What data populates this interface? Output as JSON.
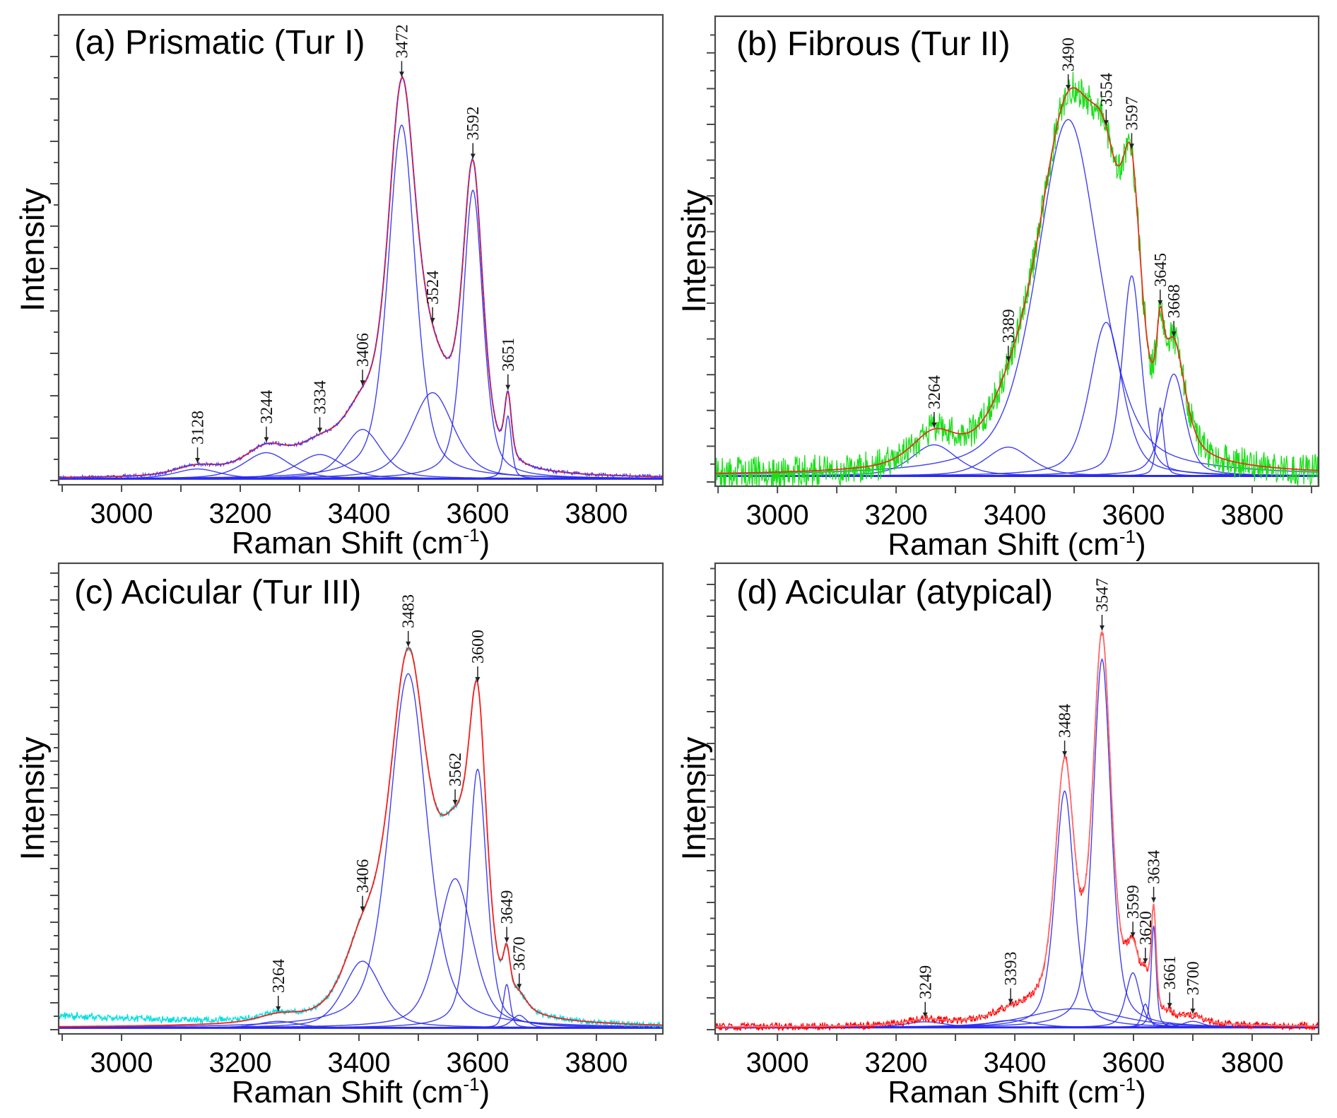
{
  "figure": {
    "panel_count": 4,
    "colors": {
      "component": "#2a2af0",
      "fit": "#ff1a1a",
      "frame": "#4a4a4a",
      "arrow": "#222222"
    }
  },
  "chart_data": [
    {
      "panel": "a",
      "type": "line",
      "title": "(a) Prismatic (Tur I)",
      "xlabel": {
        "text": "Raman Shift (cm",
        "superscript": "-1",
        "suffix": ")"
      },
      "ylabel": "Intensity",
      "xlim": [
        2894,
        3912
      ],
      "ylim": [
        -1,
        100
      ],
      "xticks": [
        3000,
        3200,
        3400,
        3600,
        3800
      ],
      "xticks_minor": [
        2900,
        3100,
        3300,
        3500,
        3700,
        3900
      ],
      "grid": false,
      "eta": 0.5,
      "baseline": [
        0.3,
        0.3
      ],
      "raw_noise": 0.4,
      "raw_color": "#3b3bff",
      "fit_color": "#ff1a1a",
      "series": [
        "measured spectrum",
        "fitted envelope",
        "fitted components"
      ],
      "components": [
        {
          "center": 3128,
          "height": 2.1,
          "fwhm": 90
        },
        {
          "center": 3244,
          "height": 5.6,
          "fwhm": 90
        },
        {
          "center": 3334,
          "height": 5.2,
          "fwhm": 90
        },
        {
          "center": 3406,
          "height": 10.6,
          "fwhm": 75
        },
        {
          "center": 3472,
          "height": 76,
          "fwhm": 55
        },
        {
          "center": 3524,
          "height": 18.5,
          "fwhm": 85
        },
        {
          "center": 3592,
          "height": 62,
          "fwhm": 40
        },
        {
          "center": 3651,
          "height": 13.5,
          "fwhm": 14
        }
      ],
      "peak_labels": [
        3128,
        3244,
        3334,
        3406,
        3472,
        3524,
        3592,
        3651
      ]
    },
    {
      "panel": "b",
      "type": "line",
      "title": "(b) Fibrous (Tur II)",
      "xlabel": {
        "text": "Raman Shift (cm",
        "superscript": "-1",
        "suffix": ")"
      },
      "ylabel": "Intensity",
      "xlim": [
        2895,
        3912
      ],
      "ylim": [
        -1,
        100
      ],
      "xticks": [
        3000,
        3200,
        3400,
        3600,
        3800
      ],
      "xticks_minor": [
        2900,
        3100,
        3300,
        3500,
        3700,
        3900
      ],
      "grid": false,
      "eta": 0.5,
      "baseline": [
        1.2,
        1.2
      ],
      "raw_noise": 3.5,
      "raw_color": "#19e019",
      "fit_color": "#e8321e",
      "series": [
        "measured spectrum",
        "fitted envelope",
        "fitted components"
      ],
      "components": [
        {
          "center": 3264,
          "height": 6.7,
          "fwhm": 90
        },
        {
          "center": 3389,
          "height": 6.2,
          "fwhm": 90
        },
        {
          "center": 3490,
          "height": 76.6,
          "fwhm": 125
        },
        {
          "center": 3554,
          "height": 33,
          "fwhm": 65
        },
        {
          "center": 3597,
          "height": 43,
          "fwhm": 38
        },
        {
          "center": 3645,
          "height": 14.6,
          "fwhm": 14
        },
        {
          "center": 3668,
          "height": 21.9,
          "fwhm": 45
        }
      ],
      "peak_labels": [
        3264,
        3389,
        3490,
        3554,
        3597,
        3645,
        3668
      ]
    },
    {
      "panel": "c",
      "type": "line",
      "title": "(c) Acicular (Tur III)",
      "xlabel": {
        "text": "Raman Shift (cm",
        "superscript": "-1",
        "suffix": ")"
      },
      "ylabel": "Intensity",
      "xlim": [
        2894,
        3912
      ],
      "ylim": [
        -1,
        100
      ],
      "xticks": [
        3000,
        3200,
        3400,
        3600,
        3800
      ],
      "xticks_minor": [
        2900,
        3100,
        3300,
        3500,
        3700,
        3900
      ],
      "grid": false,
      "eta": 0.5,
      "baseline": [
        0.3,
        0.3
      ],
      "raw_noise": 0.6,
      "raw_excess": {
        "amplitude": 2.4,
        "until": 3300
      },
      "raw_color": "#00e0e0",
      "fit_color": "#ff1a1a",
      "series": [
        "measured spectrum",
        "fitted envelope",
        "fitted components"
      ],
      "components": [
        {
          "center": 3264,
          "height": 1.4,
          "fwhm": 80
        },
        {
          "center": 3406,
          "height": 14.3,
          "fwhm": 75
        },
        {
          "center": 3483,
          "height": 76,
          "fwhm": 75
        },
        {
          "center": 3562,
          "height": 32,
          "fwhm": 70
        },
        {
          "center": 3600,
          "height": 55.5,
          "fwhm": 36
        },
        {
          "center": 3649,
          "height": 9.3,
          "fwhm": 14
        },
        {
          "center": 3670,
          "height": 2.7,
          "fwhm": 30
        }
      ],
      "peak_labels": [
        3264,
        3406,
        3483,
        3562,
        3600,
        3649,
        3670
      ]
    },
    {
      "panel": "d",
      "type": "line",
      "title": "(d) Acicular (atypical)",
      "xlabel": {
        "text": "Raman Shift (cm",
        "superscript": "-1",
        "suffix": ")"
      },
      "ylabel": "Intensity",
      "xlim": [
        2895,
        3912
      ],
      "ylim": [
        -1,
        100
      ],
      "xticks": [
        3000,
        3200,
        3400,
        3600,
        3800
      ],
      "xticks_minor": [
        2900,
        3100,
        3300,
        3500,
        3700,
        3900
      ],
      "grid": false,
      "eta": 0.5,
      "baseline": [
        0.4,
        0.4
      ],
      "raw_noise": 0.8,
      "raw_color": "#ff0000",
      "fit_color": "#ff6a6a",
      "series": [
        "measured spectrum",
        "fitted envelope",
        "fitted components"
      ],
      "components": [
        {
          "center": 3249,
          "height": 1.2,
          "fwhm": 80
        },
        {
          "center": 3393,
          "height": 1.5,
          "fwhm": 90
        },
        {
          "center": 3500,
          "height": 4,
          "fwhm": 180
        },
        {
          "center": 3484,
          "height": 50.7,
          "fwhm": 38
        },
        {
          "center": 3547,
          "height": 79,
          "fwhm": 36
        },
        {
          "center": 3599,
          "height": 11.7,
          "fwhm": 28
        },
        {
          "center": 3620,
          "height": 5,
          "fwhm": 14
        },
        {
          "center": 3634,
          "height": 21.8,
          "fwhm": 10
        },
        {
          "center": 3661,
          "height": 1,
          "fwhm": 14
        },
        {
          "center": 3700,
          "height": 1.3,
          "fwhm": 40
        }
      ],
      "peak_labels": [
        3249,
        3393,
        3484,
        3547,
        3599,
        3620,
        3634,
        3661,
        3700
      ]
    }
  ]
}
